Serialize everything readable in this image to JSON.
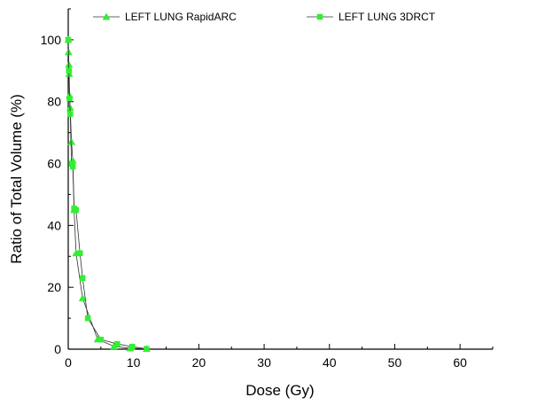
{
  "chart_data": {
    "type": "line",
    "title": "",
    "xlabel": "Dose (Gy)",
    "ylabel": "Ratio of Total Volume (%)",
    "xlim": [
      0,
      65
    ],
    "ylim": [
      0,
      110
    ],
    "xticks": [
      0,
      10,
      20,
      30,
      40,
      50,
      60
    ],
    "yticks": [
      0,
      20,
      40,
      60,
      80,
      100
    ],
    "grid": false,
    "legend_position": "top",
    "series": [
      {
        "name": "LEFT LUNG RapidARC",
        "marker": "triangle",
        "color": "#33ee33",
        "x": [
          0.0,
          0.05,
          0.1,
          0.15,
          0.2,
          0.3,
          0.5,
          0.7,
          0.9,
          1.2,
          2.2,
          4.5,
          7.0,
          9.5,
          12.0
        ],
        "y": [
          100,
          96,
          92,
          89,
          82,
          78,
          67,
          61,
          45,
          31,
          16.5,
          3.2,
          0.9,
          0.3,
          0.1
        ]
      },
      {
        "name": "LEFT LUNG 3DRCT",
        "marker": "square",
        "color": "#33ee33",
        "x": [
          0.0,
          0.1,
          0.2,
          0.3,
          0.5,
          0.7,
          0.9,
          1.2,
          1.8,
          2.2,
          3.0,
          5.0,
          7.5,
          9.8,
          12.0
        ],
        "y": [
          100,
          90,
          81,
          76,
          60,
          59,
          45.5,
          45,
          31,
          23,
          10,
          3.1,
          1.7,
          0.8,
          0.1
        ]
      }
    ]
  }
}
